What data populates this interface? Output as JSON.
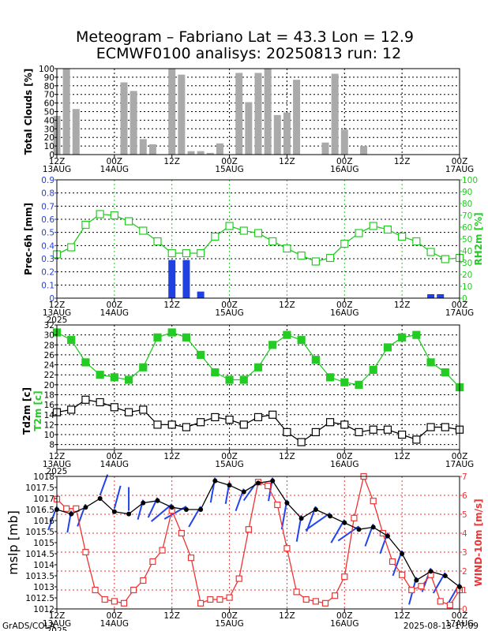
{
  "title_line1": "Meteogram – Fabriano Lat = 43.3 Lon = 12.9",
  "title_line2": "ECMWF0100 analisys: 20250813 run: 12",
  "footer_left": "GrADS/COLA",
  "footer_right": "2025-08-13-17:09",
  "colors": {
    "clouds": "#aaaaaa",
    "precip": "#2040e0",
    "rh": "#22cc22",
    "t2m": "#22cc22",
    "td2m": "#000000",
    "mslp": "#000000",
    "wind": "#ee3333",
    "barb": "#2244ee"
  },
  "time_axis": {
    "labels": [
      {
        "t": 0,
        "top": "12Z",
        "bottom": "13AUG"
      },
      {
        "t": 12,
        "top": "00Z",
        "bottom": "14AUG"
      },
      {
        "t": 24,
        "top": "12Z",
        "bottom": ""
      },
      {
        "t": 36,
        "top": "00Z",
        "bottom": "15AUG"
      },
      {
        "t": 48,
        "top": "12Z",
        "bottom": ""
      },
      {
        "t": 60,
        "top": "00Z",
        "bottom": "16AUG"
      },
      {
        "t": 72,
        "top": "12Z",
        "bottom": ""
      },
      {
        "t": 84,
        "top": "00Z",
        "bottom": "17AUG"
      }
    ],
    "year": "2025",
    "range": [
      0,
      84
    ],
    "step_hours": 2
  },
  "chart_data": [
    {
      "type": "bar",
      "ylabel": "Total Clouds [%]",
      "ylim": [
        0,
        100
      ],
      "yticks": [
        0,
        10,
        20,
        30,
        40,
        50,
        60,
        70,
        80,
        90,
        100
      ],
      "x": [
        0,
        2,
        4,
        6,
        8,
        10,
        12,
        14,
        16,
        18,
        20,
        22,
        24,
        26,
        28,
        30,
        32,
        34,
        36,
        38,
        40,
        42,
        44,
        46,
        48,
        50,
        52,
        54,
        56,
        58,
        60,
        62,
        64,
        66,
        68,
        70,
        72,
        74,
        76,
        78,
        80,
        82,
        84
      ],
      "values": [
        45,
        100,
        53,
        0,
        0,
        0,
        0,
        84,
        74,
        18,
        12,
        0,
        100,
        93,
        4,
        4,
        2,
        13,
        0,
        95,
        61,
        95,
        100,
        46,
        49,
        87,
        0,
        0,
        14,
        94,
        29,
        0,
        10,
        0,
        0,
        0,
        0,
        0,
        0,
        0,
        0,
        0,
        0
      ]
    },
    {
      "type": "bar+line",
      "ylabel_left": "Prec-6h [mm]",
      "ylabel_right": "RH2m [%]",
      "ylim_left": [
        0,
        0.9
      ],
      "yticks_left": [
        0,
        0.1,
        0.2,
        0.3,
        0.4,
        0.5,
        0.6,
        0.7,
        0.8,
        0.9
      ],
      "ylim_right": [
        0,
        100
      ],
      "yticks_right": [
        0,
        10,
        20,
        30,
        40,
        50,
        60,
        70,
        80,
        90,
        100
      ],
      "precip": {
        "x": [
          24,
          27,
          30,
          78,
          80
        ],
        "values": [
          0.29,
          0.29,
          0.05,
          0.03,
          0.03
        ]
      },
      "rh": {
        "x": [
          0,
          3,
          6,
          9,
          12,
          15,
          18,
          21,
          24,
          27,
          30,
          33,
          36,
          39,
          42,
          45,
          48,
          51,
          54,
          57,
          60,
          63,
          66,
          69,
          72,
          75,
          78,
          81,
          84
        ],
        "values": [
          37,
          43,
          62,
          71,
          70,
          65,
          57,
          48,
          38,
          38,
          38,
          52,
          61,
          57,
          55,
          48,
          42,
          36,
          31,
          34,
          46,
          55,
          61,
          58,
          52,
          48,
          39,
          33,
          34
        ]
      }
    },
    {
      "type": "line",
      "ylabel": "Td2m [c]",
      "ylabel2": "T2m [c]",
      "ylim": [
        7,
        32
      ],
      "yticks": [
        8,
        10,
        12,
        14,
        16,
        18,
        20,
        22,
        24,
        26,
        28,
        30,
        32
      ],
      "t2m": {
        "x": [
          0,
          3,
          6,
          9,
          12,
          15,
          18,
          21,
          24,
          27,
          30,
          33,
          36,
          39,
          42,
          45,
          48,
          51,
          54,
          57,
          60,
          63,
          66,
          69,
          72,
          75,
          78,
          81,
          84
        ],
        "values": [
          30.5,
          29,
          24.5,
          22,
          21.5,
          21,
          23.5,
          29.5,
          30.5,
          29.5,
          26,
          22.5,
          21,
          21,
          23.5,
          28,
          30,
          29,
          25,
          21.5,
          20.5,
          20,
          23,
          27.5,
          29.5,
          30,
          24.5,
          22.5,
          19.5
        ]
      },
      "td2m": {
        "x": [
          0,
          3,
          6,
          9,
          12,
          15,
          18,
          21,
          24,
          27,
          30,
          33,
          36,
          39,
          42,
          45,
          48,
          51,
          54,
          57,
          60,
          63,
          66,
          69,
          72,
          75,
          78,
          81,
          84
        ],
        "values": [
          14.5,
          15,
          17,
          16.5,
          15.5,
          14.5,
          15,
          12,
          12,
          11.5,
          12.5,
          13.5,
          13,
          12,
          13.5,
          14,
          10.5,
          8.5,
          10.5,
          12.5,
          12,
          10.5,
          11,
          11,
          10,
          9,
          11.5,
          11.5,
          11
        ]
      }
    },
    {
      "type": "line+barbs",
      "ylabel_left": "mslp [mb]",
      "ylabel_right": "WIND-10m [m/s]",
      "ylim_left": [
        1012,
        1018
      ],
      "yticks_left": [
        1012,
        1012.5,
        1013,
        1013.5,
        1014,
        1014.5,
        1015,
        1015.5,
        1016,
        1016.5,
        1017,
        1017.5,
        1018
      ],
      "ylim_right": [
        0,
        7
      ],
      "yticks_right": [
        0,
        1,
        2,
        3,
        4,
        5,
        6,
        7
      ],
      "mslp": {
        "x": [
          0,
          3,
          6,
          9,
          12,
          15,
          18,
          21,
          24,
          27,
          30,
          33,
          36,
          39,
          42,
          45,
          48,
          51,
          54,
          57,
          60,
          63,
          66,
          69,
          72,
          75,
          78,
          81,
          84
        ],
        "values": [
          1016.5,
          1016.3,
          1016.6,
          1017,
          1016.4,
          1016.3,
          1016.8,
          1016.9,
          1016.6,
          1016.5,
          1016.5,
          1017.8,
          1017.6,
          1017.3,
          1017.7,
          1017.8,
          1016.8,
          1016.1,
          1016.5,
          1016.2,
          1015.9,
          1015.6,
          1015.7,
          1015.3,
          1014.5,
          1013.3,
          1013.7,
          1013.5,
          1013
        ]
      },
      "wind": {
        "x": [
          0,
          2,
          4,
          6,
          8,
          10,
          12,
          14,
          16,
          18,
          20,
          22,
          24,
          26,
          28,
          30,
          32,
          34,
          36,
          38,
          40,
          42,
          44,
          46,
          48,
          50,
          52,
          54,
          56,
          58,
          60,
          62,
          64,
          66,
          68,
          70,
          72,
          74,
          76,
          78,
          80,
          82,
          84
        ],
        "values": [
          5.8,
          5.3,
          5.3,
          3,
          1.0,
          0.5,
          0.4,
          0.3,
          1.0,
          1.5,
          2.5,
          3.1,
          5.2,
          4.0,
          2.7,
          0.3,
          0.5,
          0.5,
          0.6,
          1.6,
          4.2,
          6.7,
          6.5,
          5.5,
          3.2,
          0.9,
          0.5,
          0.4,
          0.3,
          0.7,
          1.7,
          4.8,
          7.0,
          5.7,
          4.0,
          2.5,
          1.8,
          1.0,
          1.2,
          1.8,
          0.4,
          0.2,
          1.0
        ]
      },
      "barbs": {
        "x": [
          0,
          3,
          6,
          9,
          12,
          15,
          18,
          21,
          24,
          27,
          30,
          33,
          36,
          39,
          42,
          45,
          48,
          51,
          54,
          57,
          60,
          63,
          66,
          69,
          72,
          75,
          78,
          81,
          84
        ],
        "dir_deg": [
          200,
          190,
          200,
          20,
          15,
          0,
          195,
          205,
          230,
          240,
          210,
          190,
          190,
          200,
          215,
          190,
          190,
          190,
          200,
          235,
          210,
          235,
          200,
          200,
          200,
          195,
          200,
          210,
          210
        ],
        "len": [
          32,
          28,
          30,
          28,
          30,
          30,
          26,
          28,
          34,
          32,
          30,
          32,
          28,
          30,
          32,
          30,
          38,
          34,
          34,
          38,
          34,
          32,
          30,
          28,
          34,
          36,
          32,
          30,
          30
        ]
      }
    }
  ]
}
